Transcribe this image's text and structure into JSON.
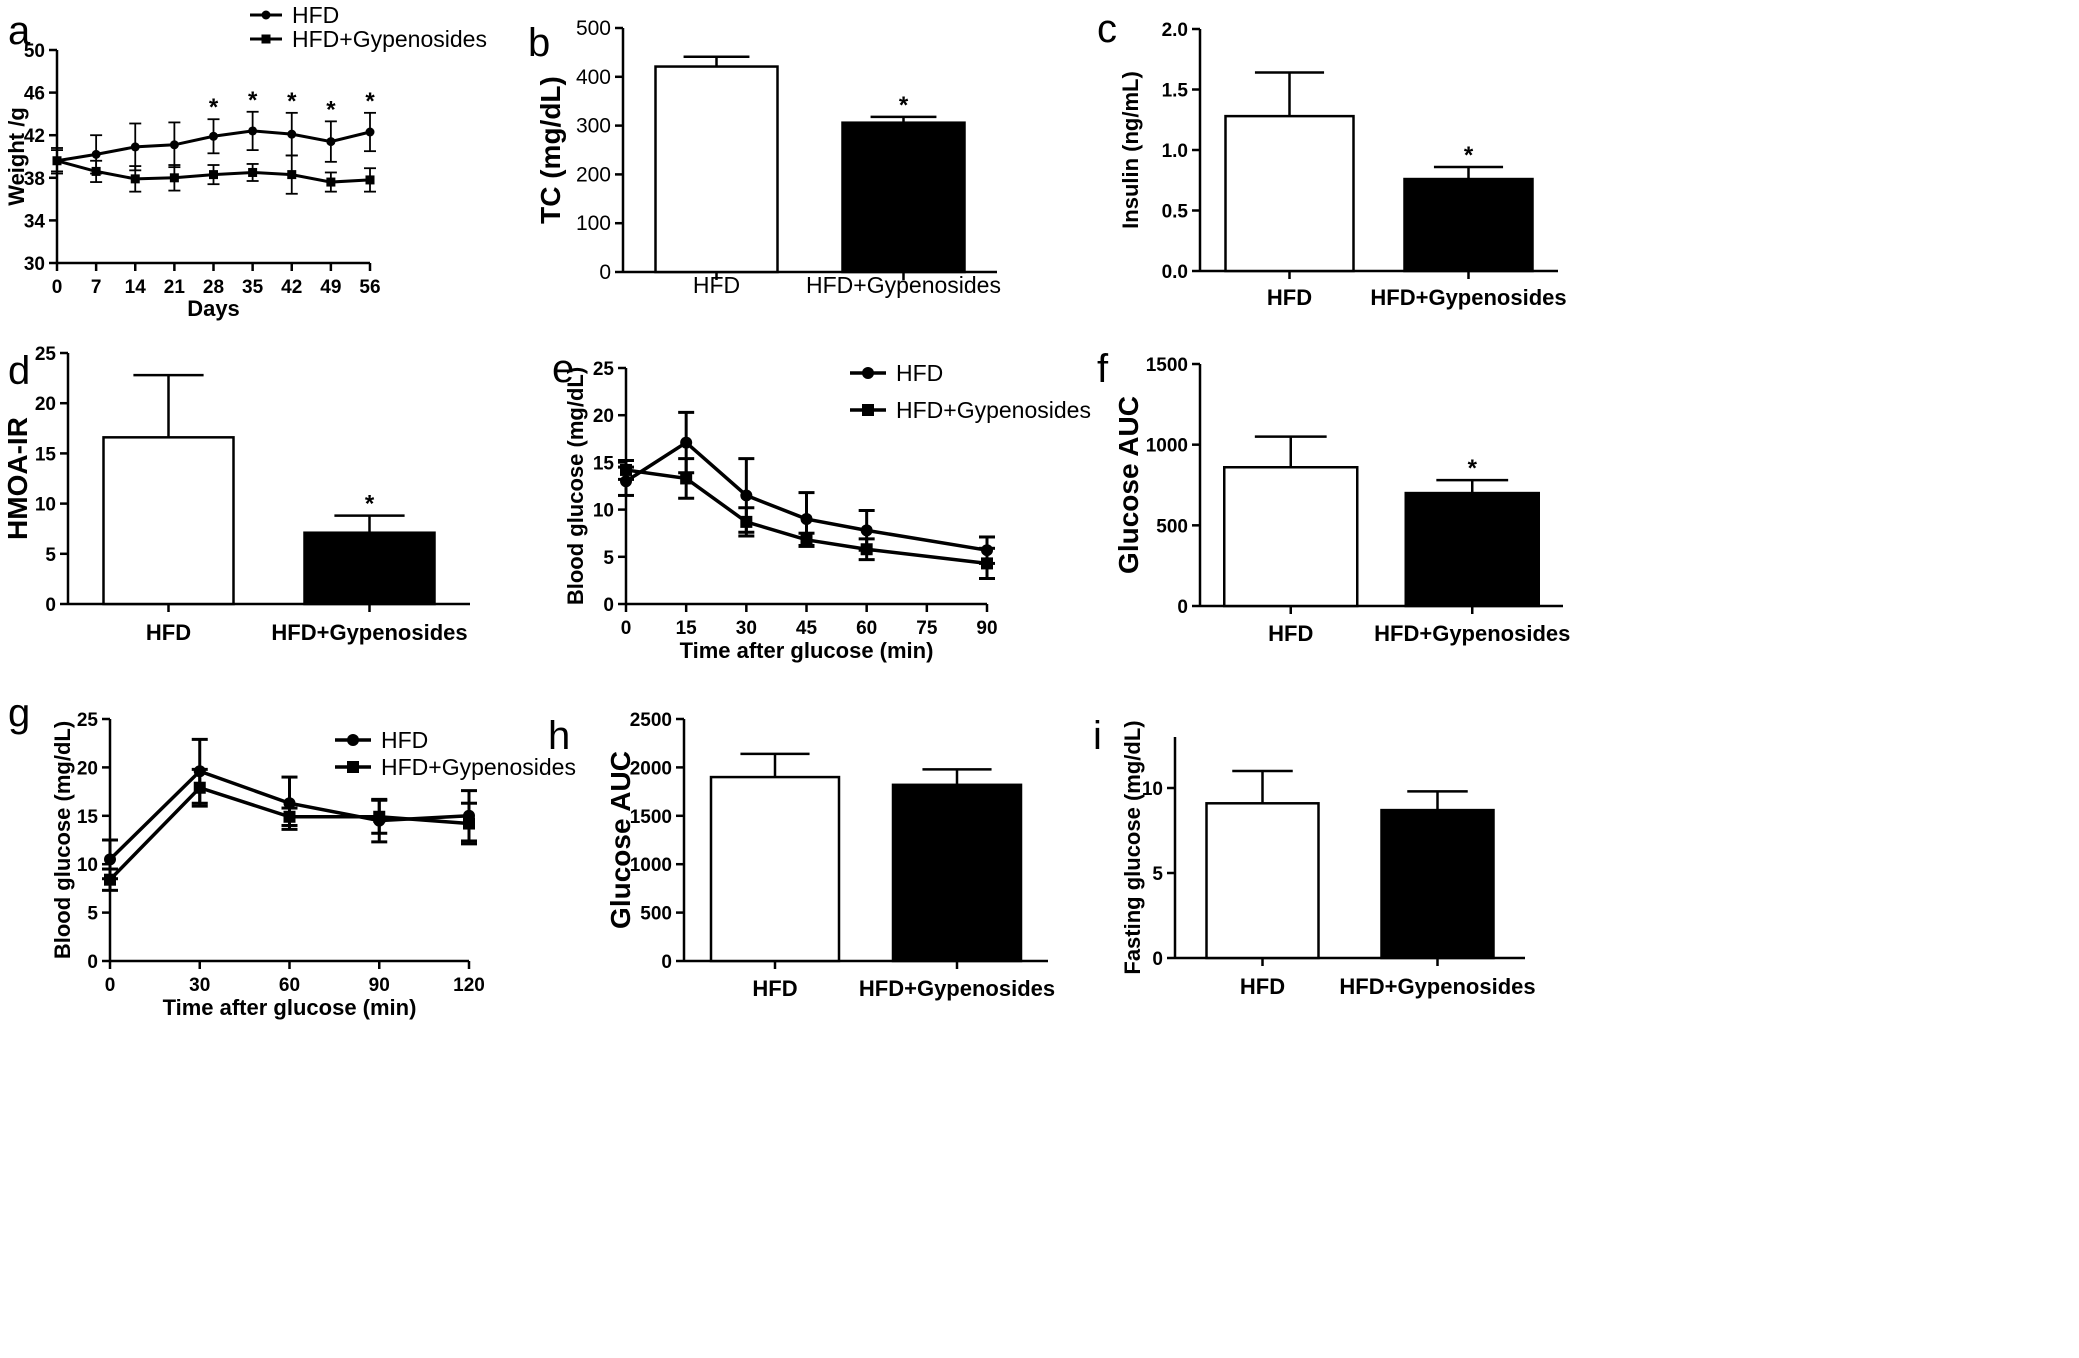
{
  "chart_data": [
    {
      "panel_label": "a",
      "type": "line",
      "xlabel": "Days",
      "ylabel": "Weight /g",
      "xlim": [
        0,
        56
      ],
      "ylim": [
        30,
        50
      ],
      "xticks": [
        "0",
        "7",
        "14",
        "21",
        "28",
        "35",
        "42",
        "49",
        "56"
      ],
      "yticks": [
        "30",
        "34",
        "38",
        "42",
        "46",
        "50"
      ],
      "x": [
        0,
        7,
        14,
        21,
        28,
        35,
        42,
        49,
        56
      ],
      "legend_position": "top",
      "series": [
        {
          "name": "HFD",
          "marker": "circle",
          "values": [
            39.6,
            40.2,
            40.9,
            41.1,
            41.9,
            42.4,
            42.1,
            41.4,
            42.3
          ],
          "errors": [
            1.2,
            1.8,
            2.2,
            2.1,
            1.6,
            1.8,
            2.0,
            1.9,
            1.8
          ]
        },
        {
          "name": "HFD+Gypenosides",
          "marker": "square",
          "values": [
            39.6,
            38.6,
            37.9,
            38.0,
            38.3,
            38.5,
            38.3,
            37.6,
            37.8
          ],
          "errors": [
            1.0,
            1.0,
            1.2,
            1.2,
            0.9,
            0.8,
            1.8,
            0.9,
            1.1
          ]
        }
      ],
      "significance": [
        {
          "x": 28,
          "text": "*"
        },
        {
          "x": 35,
          "text": "*"
        },
        {
          "x": 42,
          "text": "*"
        },
        {
          "x": 49,
          "text": "*"
        },
        {
          "x": 56,
          "text": "*"
        }
      ]
    },
    {
      "panel_label": "b",
      "type": "bar",
      "ylabel": "TC (mg/dL)",
      "ylim": [
        0,
        500
      ],
      "yticks": [
        "0",
        "100",
        "200",
        "300",
        "400",
        "500"
      ],
      "categories": [
        "HFD",
        "HFD+Gypenosides"
      ],
      "values": [
        421,
        306
      ],
      "errors": [
        20,
        12
      ],
      "bar_colors": [
        "#ffffff",
        "#000000"
      ],
      "significance": [
        {
          "index": 1,
          "text": "*"
        }
      ]
    },
    {
      "panel_label": "c",
      "type": "bar",
      "ylabel": "Insulin (ng/mL)",
      "ylim": [
        0,
        2.0
      ],
      "yticks": [
        "0.0",
        "0.5",
        "1.0",
        "1.5",
        "2.0"
      ],
      "categories": [
        "HFD",
        "HFD+Gypenosides"
      ],
      "values": [
        1.28,
        0.76
      ],
      "errors": [
        0.36,
        0.1
      ],
      "bar_colors": [
        "#ffffff",
        "#000000"
      ],
      "significance": [
        {
          "index": 1,
          "text": "*"
        }
      ]
    },
    {
      "panel_label": "d",
      "type": "bar",
      "ylabel": "HMOA-IR",
      "ylim": [
        0,
        25
      ],
      "yticks": [
        "0",
        "5",
        "10",
        "15",
        "20",
        "25"
      ],
      "categories": [
        "HFD",
        "HFD+Gypenosides"
      ],
      "values": [
        16.6,
        7.1
      ],
      "errors": [
        6.2,
        1.7
      ],
      "bar_colors": [
        "#ffffff",
        "#000000"
      ],
      "significance": [
        {
          "index": 1,
          "text": "*"
        }
      ]
    },
    {
      "panel_label": "e",
      "type": "line",
      "xlabel": "Time after glucose (min)",
      "ylabel": "Blood glucose (mg/dL)",
      "xlim": [
        0,
        90
      ],
      "ylim": [
        0,
        25
      ],
      "xticks": [
        "0",
        "15",
        "30",
        "45",
        "60",
        "75",
        "90"
      ],
      "yticks": [
        "0",
        "5",
        "10",
        "15",
        "20",
        "25"
      ],
      "x": [
        0,
        15,
        30,
        45,
        60,
        90
      ],
      "legend_position": "top-right",
      "series": [
        {
          "name": "HFD",
          "marker": "circle",
          "values": [
            13.0,
            17.1,
            11.5,
            9.0,
            7.8,
            5.7
          ],
          "errors": [
            1.5,
            3.2,
            3.9,
            2.8,
            2.1,
            1.4
          ]
        },
        {
          "name": "HFD+Gypenosides",
          "marker": "square",
          "values": [
            14.2,
            13.3,
            8.7,
            6.8,
            5.8,
            4.3
          ],
          "errors": [
            1.0,
            2.1,
            1.5,
            0.7,
            1.1,
            1.6
          ]
        }
      ]
    },
    {
      "panel_label": "f",
      "type": "bar",
      "ylabel": "Glucose AUC",
      "ylim": [
        0,
        1500
      ],
      "yticks": [
        "0",
        "500",
        "1000",
        "1500"
      ],
      "categories": [
        "HFD",
        "HFD+Gypenosides"
      ],
      "values": [
        860,
        700
      ],
      "errors": [
        190,
        80
      ],
      "bar_colors": [
        "#ffffff",
        "#000000"
      ],
      "significance": [
        {
          "index": 1,
          "text": "*"
        }
      ]
    },
    {
      "panel_label": "g",
      "type": "line",
      "xlabel": "Time after glucose (min)",
      "ylabel": "Blood glucose (mg/dL)",
      "xlim": [
        0,
        120
      ],
      "ylim": [
        0,
        25
      ],
      "xticks": [
        "0",
        "30",
        "60",
        "90",
        "120"
      ],
      "yticks": [
        "0",
        "5",
        "10",
        "15",
        "20",
        "25"
      ],
      "x": [
        0,
        30,
        60,
        90,
        120
      ],
      "legend_position": "top-right",
      "series": [
        {
          "name": "HFD",
          "marker": "circle",
          "values": [
            10.5,
            19.6,
            16.3,
            14.5,
            15.0
          ],
          "errors": [
            2.0,
            3.3,
            2.7,
            2.2,
            2.6
          ]
        },
        {
          "name": "HFD+Gypenosides",
          "marker": "square",
          "values": [
            8.4,
            17.9,
            14.9,
            14.9,
            14.2
          ],
          "errors": [
            1.1,
            1.9,
            0.9,
            1.7,
            2.1
          ]
        }
      ]
    },
    {
      "panel_label": "h",
      "type": "bar",
      "ylabel": "Glucose AUC",
      "ylim": [
        0,
        2500
      ],
      "yticks": [
        "0",
        "500",
        "1000",
        "1500",
        "2000",
        "2500"
      ],
      "categories": [
        "HFD",
        "HFD+Gypenosides"
      ],
      "values": [
        1900,
        1820
      ],
      "errors": [
        240,
        160
      ],
      "bar_colors": [
        "#ffffff",
        "#000000"
      ],
      "significance": []
    },
    {
      "panel_label": "i",
      "type": "bar",
      "ylabel": "Fasting glucose (mg/dL)",
      "ylim": [
        0,
        13
      ],
      "yticks": [
        "0",
        "5",
        "10"
      ],
      "categories": [
        "HFD",
        "HFD+Gypenosides"
      ],
      "values": [
        9.1,
        8.7
      ],
      "errors": [
        1.9,
        1.1
      ],
      "bar_colors": [
        "#ffffff",
        "#000000"
      ],
      "significance": []
    }
  ]
}
